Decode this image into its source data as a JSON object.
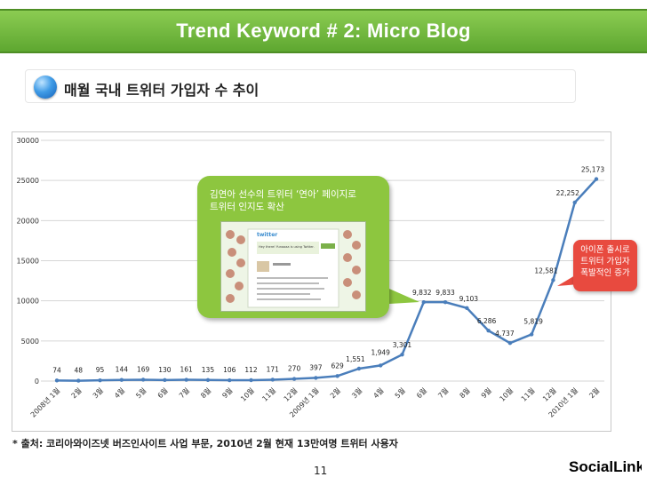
{
  "header": {
    "title": "Trend Keyword # 2: Micro Blog"
  },
  "subtitle": "매월 국내 트위터 가입자 수 추이",
  "callout_yuna": {
    "line1": "김연아 선수의 트위터 ‘연아’ 페이지로",
    "line2": "트위터 인지도 확산",
    "screenshot_caption": "Hey there! Yunaaaa is using Twitter."
  },
  "callout_iphone": {
    "line1": "아이폰 출시로",
    "line2": "트위터 가입자",
    "line3": "폭발적인 증가"
  },
  "footnote": "* 출처: 코리아와이즈넷 버즈인사이트 사업 부문, 2010년 2월 현재 13만여명 트위터 사용자",
  "page_number": "11",
  "logo": {
    "text": "SocialLink"
  },
  "colors": {
    "header_green": "#6db33f",
    "line_blue": "#4a7ebb",
    "callout_green": "#8dc63f",
    "callout_red": "#e84a3f"
  },
  "chart_data": {
    "type": "line",
    "categories": [
      "2008년 1월",
      "2월",
      "3월",
      "4월",
      "5월",
      "6월",
      "7월",
      "8월",
      "9월",
      "10월",
      "11월",
      "12월",
      "2009년 1월",
      "2월",
      "3월",
      "4월",
      "5월",
      "6월",
      "7월",
      "8월",
      "9월",
      "10월",
      "11월",
      "12월",
      "2010년 1월",
      "2월"
    ],
    "series": [
      {
        "values": [
          74,
          48,
          95,
          144,
          169,
          130,
          161,
          135,
          106,
          112,
          171,
          270,
          397,
          629,
          1551,
          1949,
          3301,
          9832,
          9833,
          9103,
          6286,
          4737,
          5819,
          12581,
          22252,
          25173
        ]
      }
    ],
    "value_labels": [
      "74",
      "48",
      "95",
      "144",
      "169",
      "130",
      "161",
      "135",
      "106",
      "112",
      "171",
      "270",
      "397",
      "629",
      "1,551",
      "1,949",
      "3,301",
      "9,832",
      "9,833",
      "9,103",
      "6,286",
      "4,737",
      "5,819",
      "12,581",
      "22,252",
      "25,173"
    ],
    "y_ticks": [
      0,
      5000,
      10000,
      15000,
      20000,
      25000,
      30000
    ],
    "ylim": [
      0,
      30000
    ],
    "grid": true,
    "legend": "none"
  }
}
